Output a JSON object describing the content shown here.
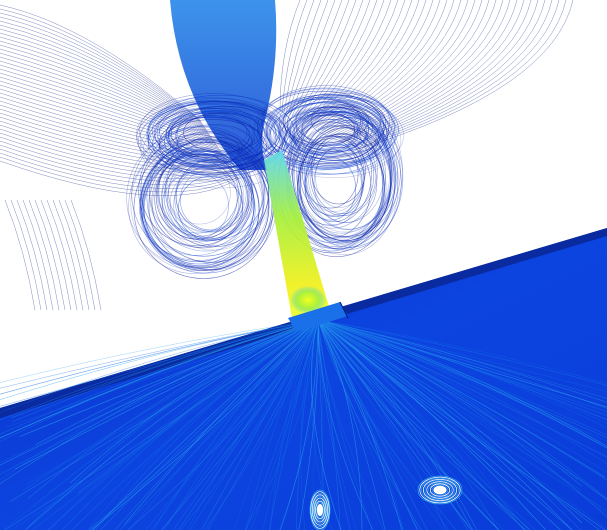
{
  "image": {
    "background": "#ffffff",
    "colormap": [
      "#0a1e9e",
      "#0a3cd0",
      "#1470e8",
      "#2aa0ec",
      "#50d0e0",
      "#a8f040",
      "#f0f020"
    ],
    "line_color": "#1a2a8a",
    "plate_color": "#0c3ad8"
  }
}
